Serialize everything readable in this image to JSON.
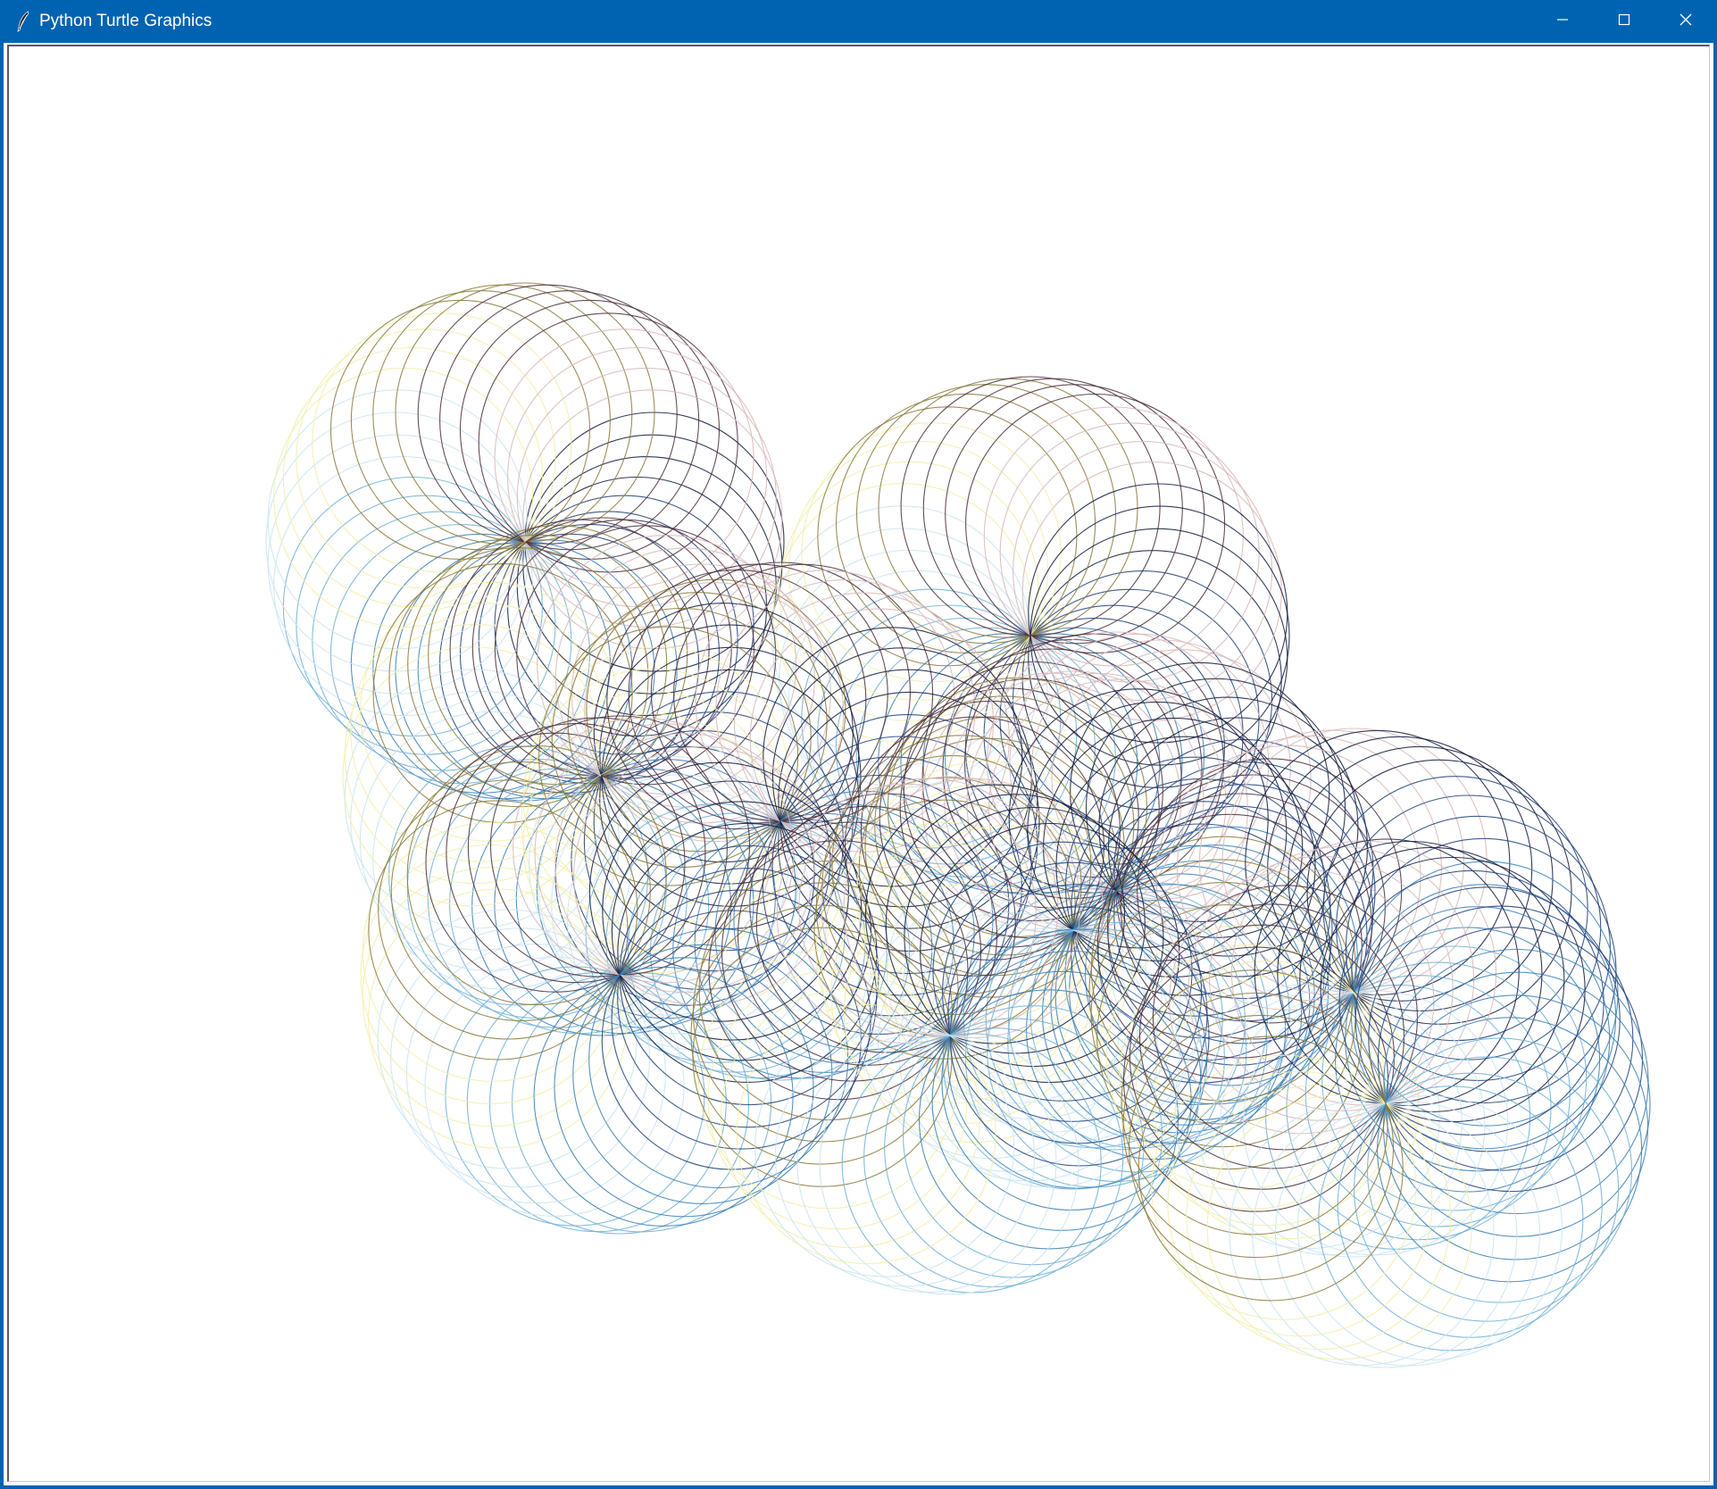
{
  "window": {
    "title": "Python Turtle Graphics",
    "icon": "feather-icon",
    "controls": {
      "minimize": "minimize-icon",
      "maximize": "maximize-icon",
      "close": "close-icon"
    }
  },
  "canvas": {
    "background": "#ffffff",
    "drawing": {
      "pattern": "spirograph-rosettes",
      "rosette_count": 11,
      "circles_per_rosette": 36,
      "palette": [
        "#101a3c",
        "#1f3f7a",
        "#3a7fb5",
        "#6fb0d8",
        "#c9e4f2",
        "#f2efa8",
        "#8a7a3a",
        "#4a2e3c",
        "#d7b8b8"
      ]
    }
  }
}
